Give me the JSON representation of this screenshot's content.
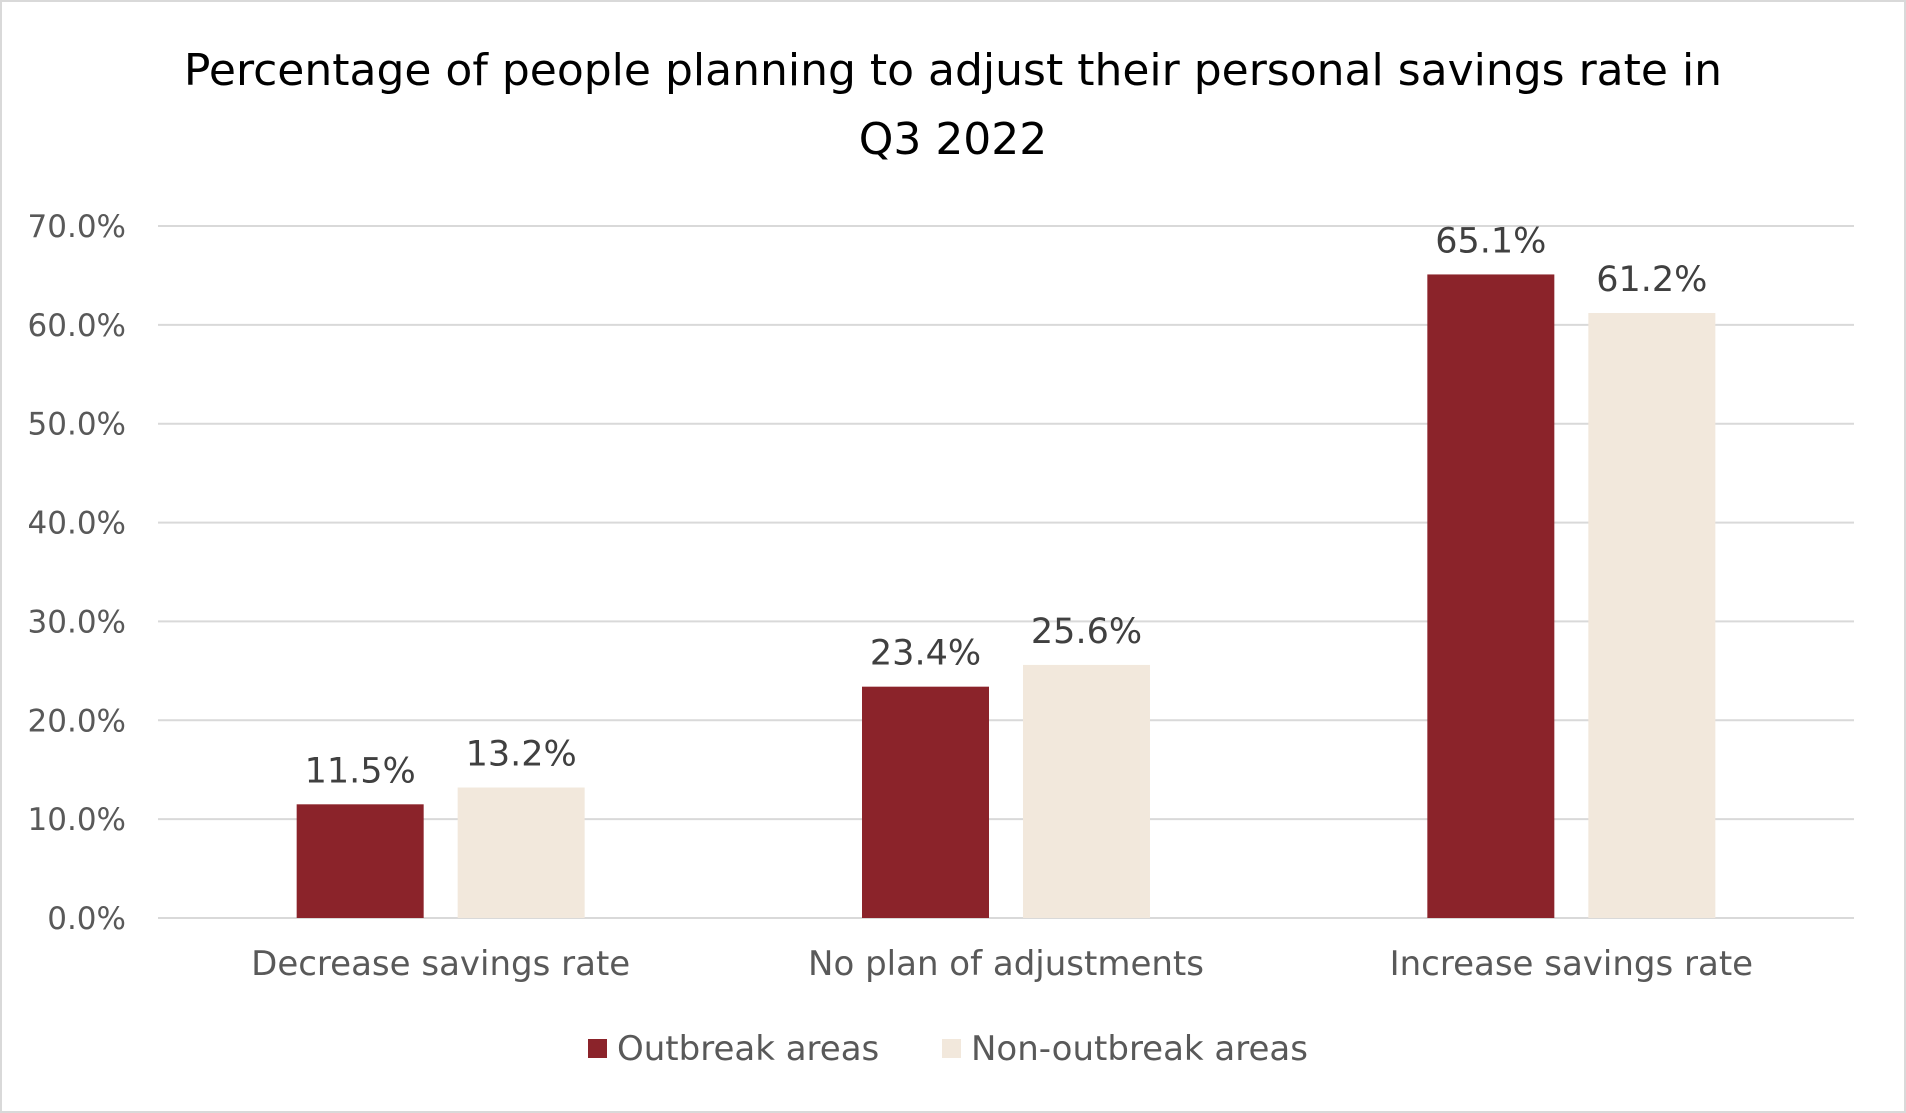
{
  "chart_data": {
    "type": "bar",
    "title_lines": [
      "Percentage of people planning to adjust their personal savings rate in",
      "Q3 2022"
    ],
    "categories": [
      "Decrease savings rate",
      "No plan of adjustments",
      "Increase savings rate"
    ],
    "series": [
      {
        "name": "Outbreak areas",
        "values": [
          11.5,
          23.4,
          65.1
        ],
        "labels": [
          "11.5%",
          "23.4%",
          "65.1%"
        ],
        "color": "#8B232A"
      },
      {
        "name": "Non-outbreak areas",
        "values": [
          13.2,
          25.6,
          61.2
        ],
        "labels": [
          "13.2%",
          "25.6%",
          "61.2%"
        ],
        "color": "#F2E8DC"
      }
    ],
    "yticks": [
      "0.0%",
      "10.0%",
      "20.0%",
      "30.0%",
      "40.0%",
      "50.0%",
      "60.0%",
      "70.0%"
    ],
    "ylim": [
      0,
      70
    ],
    "grid": true,
    "legend_position": "bottom",
    "xlabel": "",
    "ylabel": ""
  }
}
